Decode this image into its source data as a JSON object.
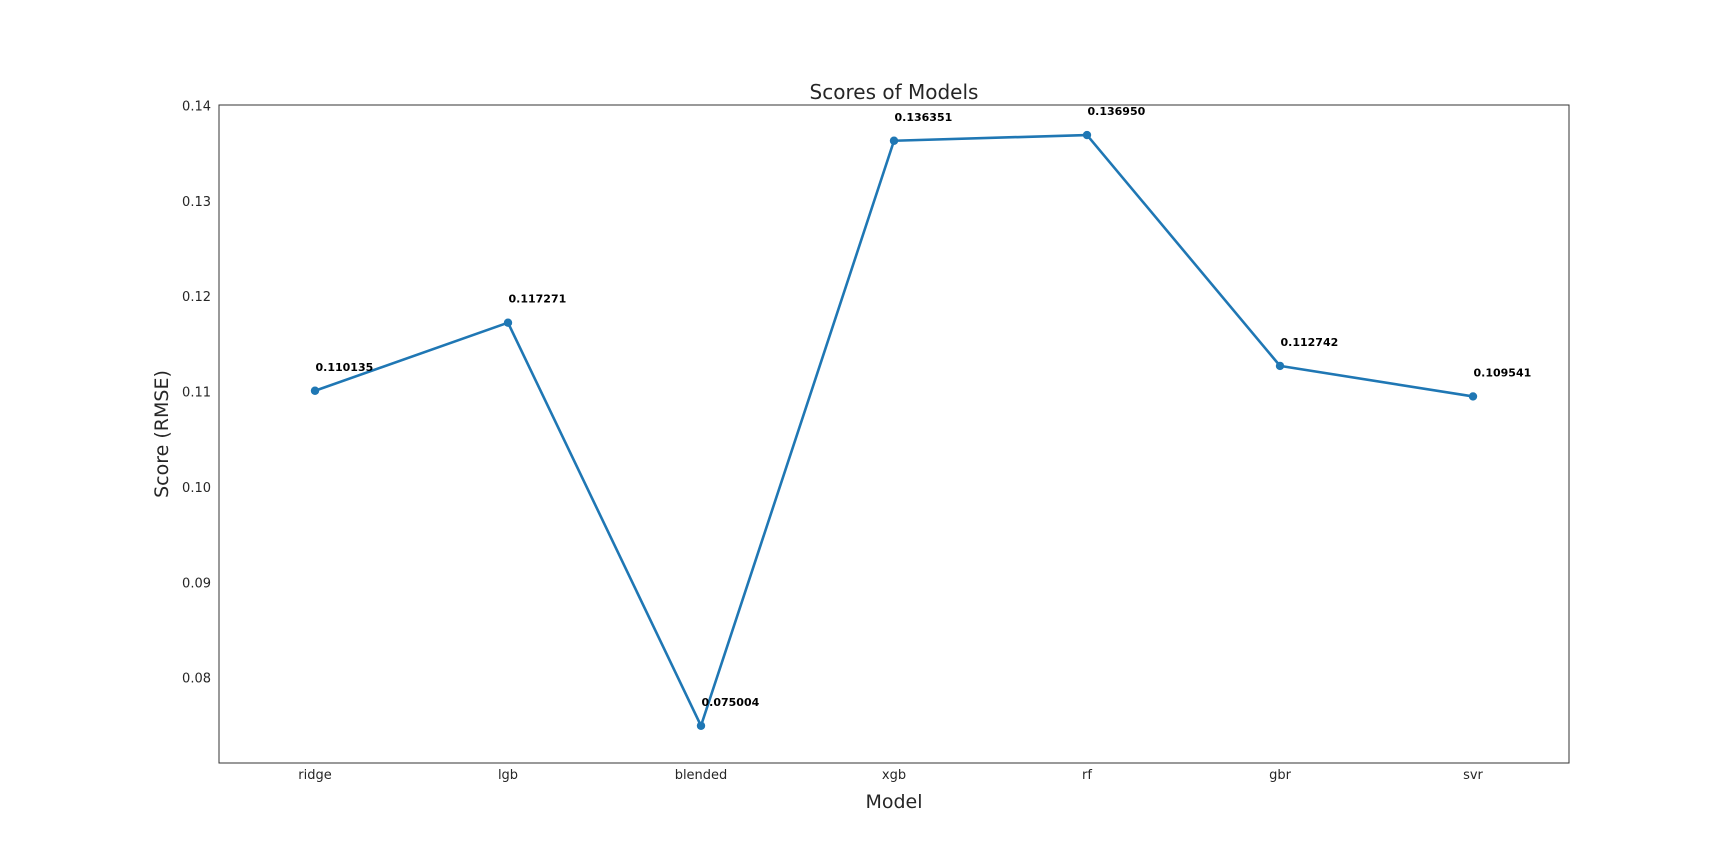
{
  "chart_data": {
    "type": "line",
    "title": "Scores of Models",
    "xlabel": "Model",
    "ylabel": "Score (RMSE)",
    "categories": [
      "ridge",
      "lgb",
      "blended",
      "xgb",
      "rf",
      "gbr",
      "svr"
    ],
    "series": [
      {
        "values": [
          0.110135,
          0.117271,
          0.075004,
          0.136351,
          0.13695,
          0.112742,
          0.109541
        ],
        "color": "#1f77b4",
        "marker": "circle"
      }
    ],
    "data_labels": [
      "0.110135",
      "0.117271",
      "0.075004",
      "0.136351",
      "0.136950",
      "0.112742",
      "0.109541"
    ],
    "yticks": [
      "0.08",
      "0.09",
      "0.10",
      "0.11",
      "0.12",
      "0.13",
      "0.14"
    ],
    "ytick_values": [
      0.08,
      0.09,
      0.1,
      0.11,
      0.12,
      0.13,
      0.14
    ],
    "ylim": [
      0.0711,
      0.1401
    ],
    "grid": false,
    "legend": false
  }
}
